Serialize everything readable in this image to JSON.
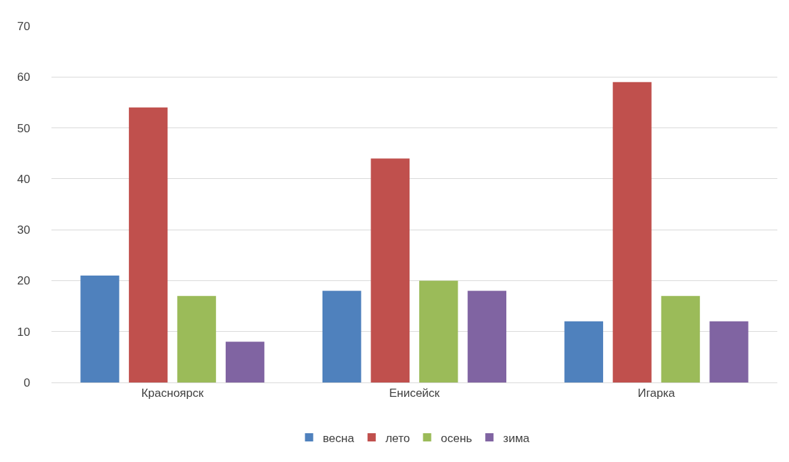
{
  "chart_data": {
    "type": "bar",
    "categories": [
      "Красноярск",
      "Енисейск",
      "Игарка"
    ],
    "series": [
      {
        "name": "весна",
        "color": "#4f81bd",
        "values": [
          21,
          18,
          12
        ]
      },
      {
        "name": "лето",
        "color": "#c0504d",
        "values": [
          54,
          44,
          59
        ]
      },
      {
        "name": "осень",
        "color": "#9bbb59",
        "values": [
          17,
          20,
          17
        ]
      },
      {
        "name": "зима",
        "color": "#8064a2",
        "values": [
          8,
          18,
          12
        ]
      }
    ],
    "ylim": [
      0,
      70
    ],
    "yticks": [
      0,
      10,
      20,
      30,
      40,
      50,
      60,
      70
    ],
    "grid": "y",
    "legend": "bottom"
  }
}
